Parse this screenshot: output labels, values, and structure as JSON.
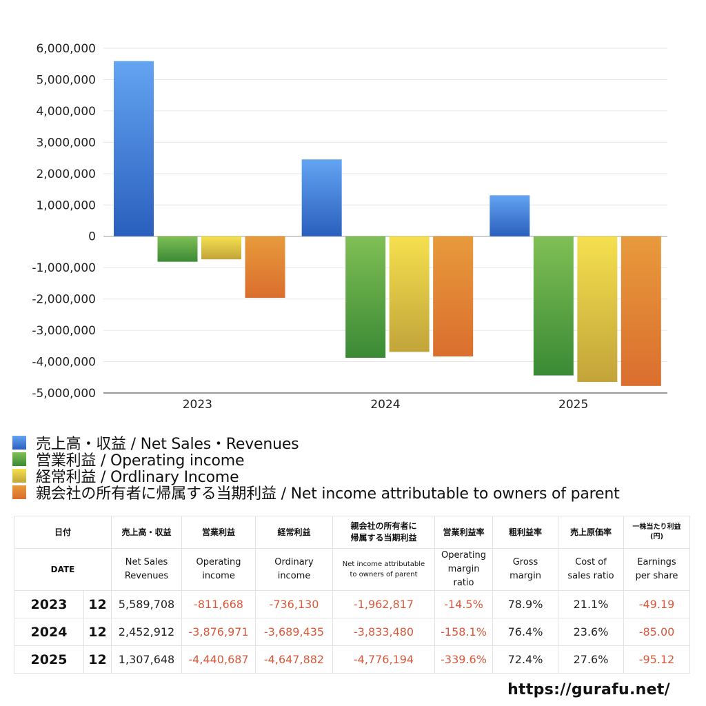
{
  "chart_data": {
    "type": "bar",
    "categories": [
      "2023",
      "2024",
      "2025"
    ],
    "series": [
      {
        "name": "売上高・収益 / Net Sales・Revenues",
        "values": [
          5589708,
          2452912,
          1307648
        ]
      },
      {
        "name": "営業利益 / Operating income",
        "values": [
          -811668,
          -3876971,
          -4440687
        ]
      },
      {
        "name": "経常利益 / Ordlinary Income",
        "values": [
          -736130,
          -3689435,
          -4647882
        ]
      },
      {
        "name": "親会社の所有者に帰属する当期利益 / Net income attributable to owners of parent",
        "values": [
          -1962817,
          -3833480,
          -4776194
        ]
      }
    ],
    "ylim": [
      -5000000,
      6000000
    ],
    "yticks": [
      6000000,
      5000000,
      4000000,
      3000000,
      2000000,
      1000000,
      0,
      -1000000,
      -2000000,
      -3000000,
      -4000000,
      -5000000
    ],
    "ytick_labels": [
      "6,000,000",
      "5,000,000",
      "4,000,000",
      "3,000,000",
      "2,000,000",
      "1,000,000",
      "0",
      "-1,000,000",
      "-2,000,000",
      "-3,000,000",
      "-4,000,000",
      "-5,000,000"
    ],
    "grid": true,
    "legend_position": "bottom"
  },
  "colors": {
    "sales": [
      "#63a4f2",
      "#2a5fbd"
    ],
    "operating": [
      "#80bf55",
      "#3a8a35"
    ],
    "ordinary": [
      "#f5e04e",
      "#c2a43a"
    ],
    "net": [
      "#e89a3c",
      "#da6e2e"
    ],
    "negative_text": "#d9583a"
  },
  "legend": [
    {
      "label": "売上高・収益 / Net Sales・Revenues",
      "color": "sales"
    },
    {
      "label": "営業利益 / Operating income",
      "color": "operating"
    },
    {
      "label": "経常利益 / Ordlinary Income",
      "color": "ordinary"
    },
    {
      "label": "親会社の所有者に帰属する当期利益 / Net income attributable to owners of parent",
      "color": "net"
    }
  ],
  "table": {
    "header_ja": {
      "date": "日付",
      "sales": "売上高・収益",
      "operating": "営業利益",
      "ordinary": "経常利益",
      "net_line1": "親会社の所有者に",
      "net_line2": "帰属する当期利益",
      "op_margin": "営業利益率",
      "gross": "粗利益率",
      "cost": "売上原価率",
      "eps_line1": "一株当たり利益",
      "eps_line2": "(円)"
    },
    "header_en": {
      "date": "DATE",
      "sales_1": "Net Sales",
      "sales_2": "Revenues",
      "operating_1": "Operating",
      "operating_2": "income",
      "ordinary_1": "Ordinary",
      "ordinary_2": "income",
      "net_1": "Net income attributable",
      "net_2": "to owners of parent",
      "op_margin_1": "Operating",
      "op_margin_2": "margin",
      "op_margin_3": "ratio",
      "gross_1": "Gross",
      "gross_2": "margin",
      "cost_1": "Cost of",
      "cost_2": "sales ratio",
      "eps_1": "Earnings",
      "eps_2": "per share"
    },
    "rows": [
      {
        "year": "2023",
        "month": "12",
        "sales": "5,589,708",
        "operating": "-811,668",
        "ordinary": "-736,130",
        "net": "-1,962,817",
        "op_margin": "-14.5%",
        "gross": "78.9%",
        "cost": "21.1%",
        "eps": "-49.19"
      },
      {
        "year": "2024",
        "month": "12",
        "sales": "2,452,912",
        "operating": "-3,876,971",
        "ordinary": "-3,689,435",
        "net": "-3,833,480",
        "op_margin": "-158.1%",
        "gross": "76.4%",
        "cost": "23.6%",
        "eps": "-85.00"
      },
      {
        "year": "2025",
        "month": "12",
        "sales": "1,307,648",
        "operating": "-4,440,687",
        "ordinary": "-4,647,882",
        "net": "-4,776,194",
        "op_margin": "-339.6%",
        "gross": "72.4%",
        "cost": "27.6%",
        "eps": "-95.12"
      }
    ]
  },
  "site_url": "https://gurafu.net/"
}
